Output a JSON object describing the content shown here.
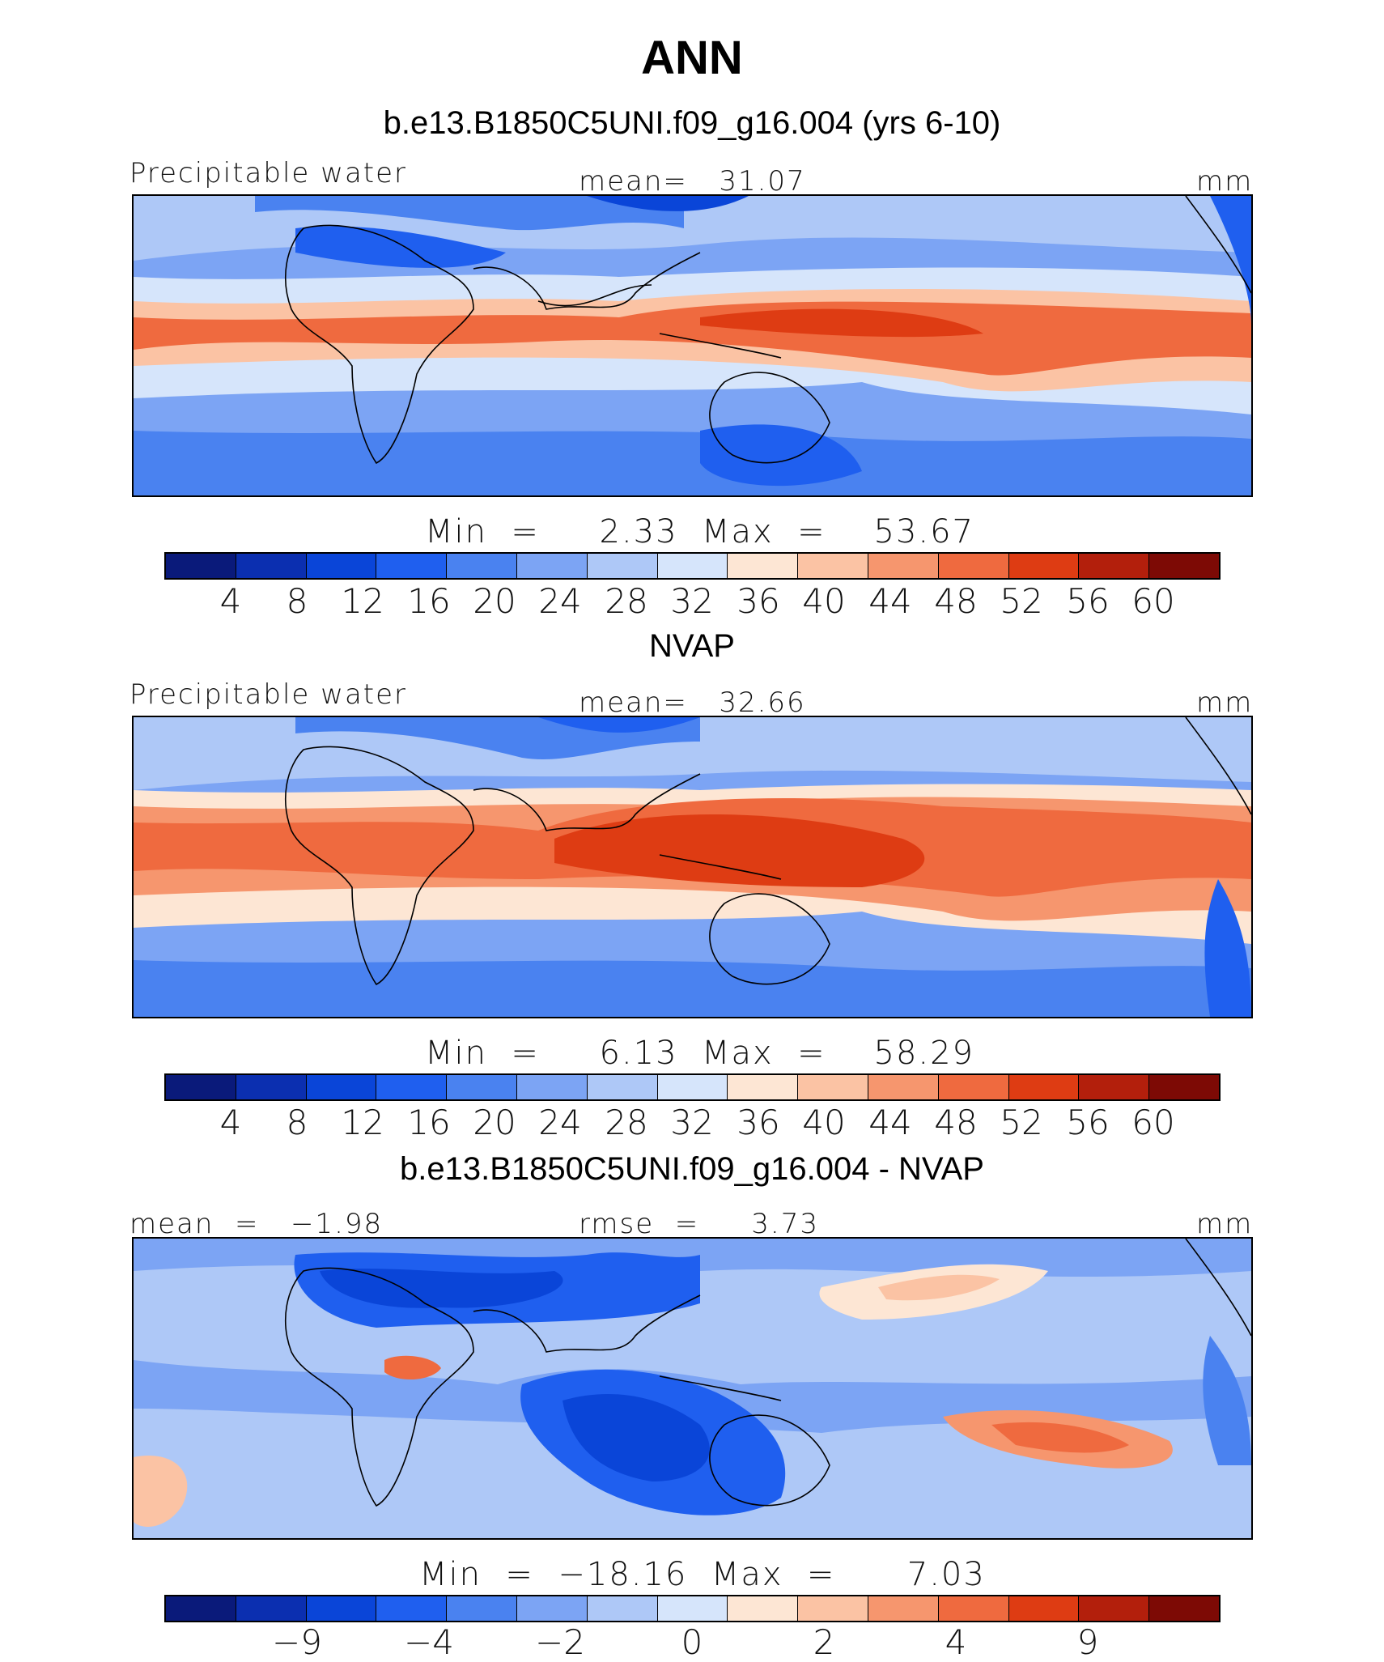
{
  "title": "ANN",
  "panels": [
    {
      "heading": "b.e13.B1850C5UNI.f09_g16.004 (yrs 6-10)",
      "left_label": "Precipitable water",
      "center_label": "mean=   31.07",
      "right_label": "mm",
      "minmax": "Min  =     2.33  Max  =    53.67",
      "colorbar_ticks": [
        "4",
        "8",
        "12",
        "16",
        "20",
        "24",
        "28",
        "32",
        "36",
        "40",
        "44",
        "48",
        "52",
        "56",
        "60"
      ]
    },
    {
      "heading": "NVAP",
      "left_label": "Precipitable water",
      "center_label": "mean=   32.66",
      "right_label": "mm",
      "minmax": "Min  =     6.13  Max  =    58.29",
      "colorbar_ticks": [
        "4",
        "8",
        "12",
        "16",
        "20",
        "24",
        "28",
        "32",
        "36",
        "40",
        "44",
        "48",
        "52",
        "56",
        "60"
      ]
    },
    {
      "heading": "b.e13.B1850C5UNI.f09_g16.004 - NVAP",
      "left_label": "mean  =   −1.98",
      "center_label": "rmse  =     3.73",
      "right_label": "mm",
      "minmax": "Min  =  −18.16  Max  =      7.03",
      "colorbar_ticks": [
        "−9",
        "−4",
        "−2",
        "0",
        "2",
        "4",
        "9"
      ]
    }
  ],
  "palette": [
    "#0a1a7a",
    "#0b2fb0",
    "#0a45d8",
    "#1f5fef",
    "#4a82f0",
    "#7ca4f4",
    "#aec8f7",
    "#d6e5fb",
    "#fde6d4",
    "#fbc3a4",
    "#f6966e",
    "#ef6a3f",
    "#de3c13",
    "#b31f0c",
    "#7d0a05"
  ]
}
